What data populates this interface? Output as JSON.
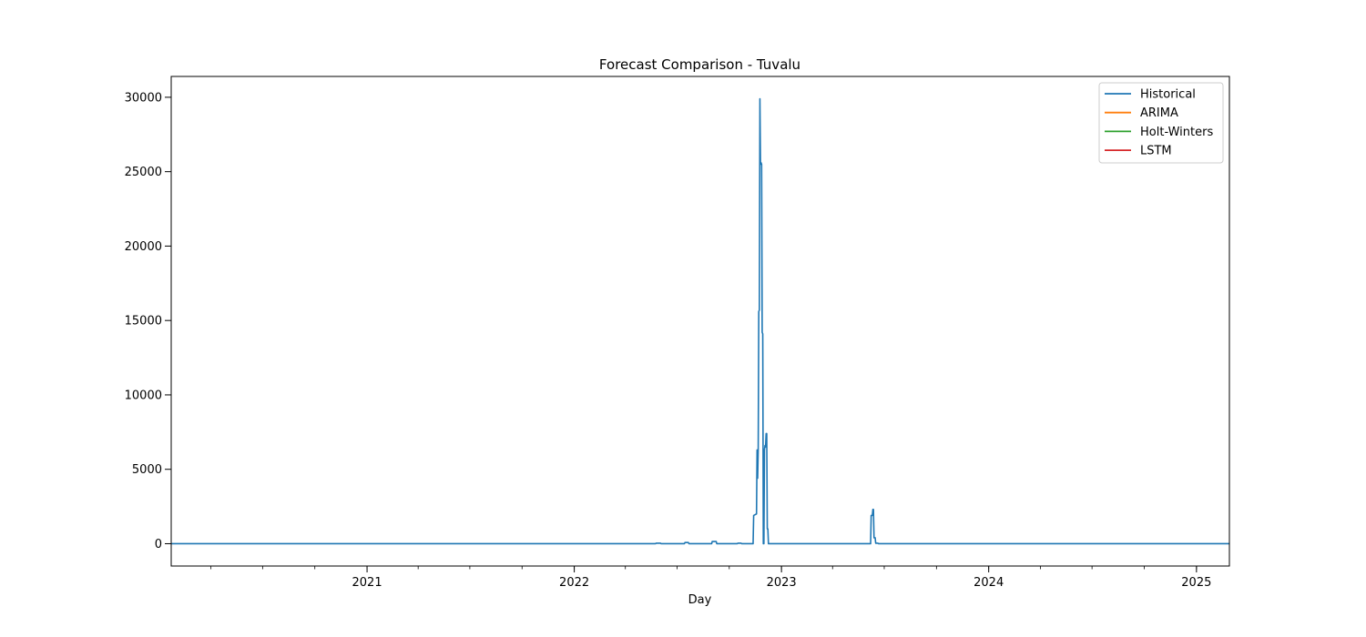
{
  "chart_data": {
    "type": "line",
    "title": "Forecast Comparison - Tuvalu",
    "xlabel": "Day",
    "ylabel": "",
    "x_axis_type": "date",
    "xlim": [
      "2020-01-22",
      "2025-02-28"
    ],
    "ylim": [
      -1500,
      31400
    ],
    "x_ticks": [
      {
        "date": "2021-01-01",
        "label": "2021"
      },
      {
        "date": "2022-01-01",
        "label": "2022"
      },
      {
        "date": "2023-01-01",
        "label": "2023"
      },
      {
        "date": "2024-01-01",
        "label": "2024"
      },
      {
        "date": "2025-01-01",
        "label": "2025"
      }
    ],
    "y_ticks": [
      0,
      5000,
      10000,
      15000,
      20000,
      25000,
      30000
    ],
    "y_tick_labels": [
      "0",
      "5000",
      "10000",
      "15000",
      "20000",
      "25000",
      "30000"
    ],
    "grid": false,
    "legend_position": "top-right",
    "series": [
      {
        "name": "Historical",
        "color": "#1f77b4",
        "points": [
          [
            "2020-01-22",
            0
          ],
          [
            "2022-05-24",
            0
          ],
          [
            "2022-05-25",
            30
          ],
          [
            "2022-06-02",
            30
          ],
          [
            "2022-06-03",
            0
          ],
          [
            "2022-07-14",
            0
          ],
          [
            "2022-07-15",
            80
          ],
          [
            "2022-07-21",
            80
          ],
          [
            "2022-07-22",
            0
          ],
          [
            "2022-08-31",
            0
          ],
          [
            "2022-09-01",
            150
          ],
          [
            "2022-09-08",
            150
          ],
          [
            "2022-09-09",
            0
          ],
          [
            "2022-10-15",
            0
          ],
          [
            "2022-10-16",
            30
          ],
          [
            "2022-10-22",
            30
          ],
          [
            "2022-10-23",
            0
          ],
          [
            "2022-11-12",
            0
          ],
          [
            "2022-11-13",
            1900
          ],
          [
            "2022-11-18",
            2000
          ],
          [
            "2022-11-19",
            6300
          ],
          [
            "2022-11-20",
            4400
          ],
          [
            "2022-11-21",
            6300
          ],
          [
            "2022-11-22",
            15600
          ],
          [
            "2022-11-23",
            15700
          ],
          [
            "2022-11-24",
            29900
          ],
          [
            "2022-11-25",
            25500
          ],
          [
            "2022-11-26",
            25600
          ],
          [
            "2022-11-27",
            25500
          ],
          [
            "2022-11-28",
            14200
          ],
          [
            "2022-11-29",
            14100
          ],
          [
            "2022-11-30",
            0
          ],
          [
            "2022-12-01",
            0
          ],
          [
            "2022-12-02",
            6300
          ],
          [
            "2022-12-03",
            6600
          ],
          [
            "2022-12-04",
            6500
          ],
          [
            "2022-12-05",
            7400
          ],
          [
            "2022-12-06",
            7400
          ],
          [
            "2022-12-07",
            1000
          ],
          [
            "2022-12-08",
            1000
          ],
          [
            "2022-12-09",
            0
          ],
          [
            "2023-06-07",
            0
          ],
          [
            "2023-06-08",
            1900
          ],
          [
            "2023-06-10",
            1900
          ],
          [
            "2023-06-11",
            2300
          ],
          [
            "2023-06-12",
            2300
          ],
          [
            "2023-06-13",
            400
          ],
          [
            "2023-06-15",
            400
          ],
          [
            "2023-06-16",
            30
          ],
          [
            "2023-06-20",
            30
          ],
          [
            "2023-06-21",
            0
          ],
          [
            "2025-02-28",
            0
          ]
        ]
      },
      {
        "name": "ARIMA",
        "color": "#ff7f0e",
        "points": []
      },
      {
        "name": "Holt-Winters",
        "color": "#2ca02c",
        "points": []
      },
      {
        "name": "LSTM",
        "color": "#d62728",
        "points": []
      }
    ]
  }
}
